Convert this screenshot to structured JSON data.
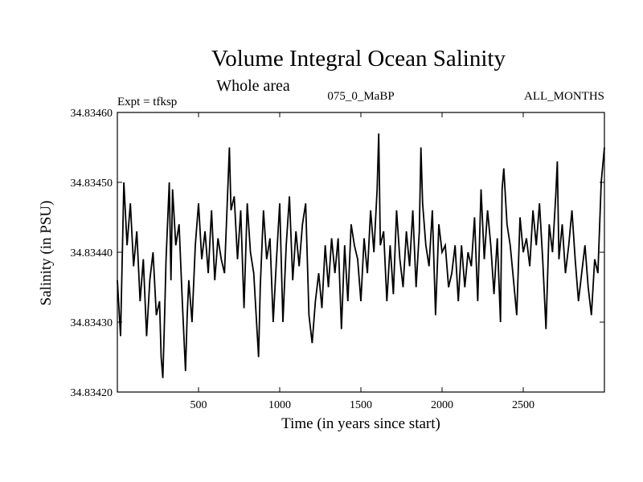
{
  "chart_data": {
    "type": "line",
    "title": "Volume Integral Ocean Salinity",
    "subtitle": "Whole area",
    "experiment_label": "Expt = tfksp",
    "run_label": "075_0_MaBP",
    "period_label": "ALL_MONTHS",
    "xlabel": "Time (in years since start)",
    "ylabel": "Salinity (in PSU)",
    "xlim": [
      0,
      3000
    ],
    "ylim": [
      34.8342,
      34.8346
    ],
    "x_ticks": [
      500,
      1000,
      1500,
      2000,
      2500
    ],
    "x_tick_labels": [
      "500",
      "1000",
      "1500",
      "2000",
      "2500"
    ],
    "y_ticks": [
      34.8342,
      34.8343,
      34.8344,
      34.8345,
      34.8346
    ],
    "y_tick_labels": [
      "34.83420",
      "34.83430",
      "34.83440",
      "34.83450",
      "34.83460"
    ],
    "line_color": "#000000",
    "series": [
      {
        "name": "Salinity",
        "x": [
          0,
          20,
          40,
          60,
          80,
          100,
          120,
          140,
          160,
          180,
          200,
          220,
          240,
          260,
          270,
          280,
          290,
          300,
          320,
          330,
          340,
          360,
          380,
          400,
          420,
          430,
          440,
          460,
          480,
          500,
          520,
          540,
          560,
          580,
          600,
          620,
          640,
          660,
          680,
          690,
          700,
          720,
          740,
          760,
          780,
          800,
          820,
          840,
          860,
          870,
          880,
          900,
          920,
          940,
          960,
          980,
          1000,
          1020,
          1040,
          1060,
          1080,
          1100,
          1120,
          1140,
          1160,
          1180,
          1200,
          1220,
          1240,
          1260,
          1280,
          1300,
          1320,
          1340,
          1360,
          1380,
          1400,
          1420,
          1440,
          1460,
          1480,
          1500,
          1520,
          1540,
          1560,
          1580,
          1600,
          1610,
          1620,
          1640,
          1660,
          1680,
          1700,
          1720,
          1740,
          1760,
          1780,
          1800,
          1820,
          1840,
          1860,
          1870,
          1880,
          1900,
          1920,
          1940,
          1960,
          1980,
          2000,
          2020,
          2040,
          2060,
          2080,
          2100,
          2120,
          2140,
          2160,
          2180,
          2200,
          2220,
          2240,
          2260,
          2280,
          2300,
          2320,
          2340,
          2360,
          2370,
          2380,
          2400,
          2420,
          2440,
          2460,
          2480,
          2500,
          2520,
          2540,
          2560,
          2580,
          2600,
          2620,
          2640,
          2660,
          2680,
          2700,
          2710,
          2720,
          2740,
          2760,
          2780,
          2800,
          2820,
          2840,
          2860,
          2880,
          2900,
          2920,
          2940,
          2960,
          2980,
          3000
        ],
        "values": [
          34.83436,
          34.83428,
          34.8345,
          34.83441,
          34.83447,
          34.83438,
          34.83443,
          34.83433,
          34.83439,
          34.83428,
          34.83436,
          34.8344,
          34.83431,
          34.83433,
          34.83425,
          34.83422,
          34.8343,
          34.83439,
          34.8345,
          34.83436,
          34.83449,
          34.83441,
          34.83444,
          34.83433,
          34.83423,
          34.83431,
          34.83436,
          34.8343,
          34.83441,
          34.83447,
          34.83439,
          34.83443,
          34.83437,
          34.83446,
          34.83436,
          34.83442,
          34.83439,
          34.83437,
          34.83449,
          34.83455,
          34.83446,
          34.83448,
          34.83439,
          34.83446,
          34.83432,
          34.83447,
          34.8344,
          34.83437,
          34.83429,
          34.83425,
          34.83435,
          34.83446,
          34.83439,
          34.83442,
          34.8343,
          34.83439,
          34.83447,
          34.8343,
          34.83441,
          34.83448,
          34.83436,
          34.83443,
          34.83438,
          34.83444,
          34.83447,
          34.83431,
          34.83427,
          34.83433,
          34.83437,
          34.83432,
          34.83441,
          34.83435,
          34.83442,
          34.83437,
          34.83442,
          34.83429,
          34.83441,
          34.83433,
          34.83444,
          34.83441,
          34.83439,
          34.83433,
          34.83442,
          34.83437,
          34.83446,
          34.8344,
          34.83449,
          34.83457,
          34.83441,
          34.83443,
          34.83433,
          34.83441,
          34.83434,
          34.83446,
          34.83439,
          34.83435,
          34.83443,
          34.83438,
          34.83446,
          34.83435,
          34.83443,
          34.83455,
          34.83447,
          34.83441,
          34.83438,
          34.83446,
          34.83431,
          34.83444,
          34.8344,
          34.83441,
          34.83435,
          34.83437,
          34.83441,
          34.83433,
          34.83441,
          34.83435,
          34.8344,
          34.83438,
          34.83445,
          34.83433,
          34.83449,
          34.83439,
          34.83446,
          34.83441,
          34.83434,
          34.83442,
          34.8343,
          34.83449,
          34.83452,
          34.83444,
          34.83441,
          34.83436,
          34.83431,
          34.83445,
          34.8344,
          34.83442,
          34.83438,
          34.83446,
          34.83441,
          34.83447,
          34.83439,
          34.83429,
          34.83444,
          34.8344,
          34.83448,
          34.83453,
          34.83439,
          34.83444,
          34.83437,
          34.83441,
          34.83446,
          34.83439,
          34.83433,
          34.83437,
          34.83441,
          34.83435,
          34.83431,
          34.83439,
          34.83437,
          34.8345,
          34.83455
        ]
      }
    ]
  }
}
